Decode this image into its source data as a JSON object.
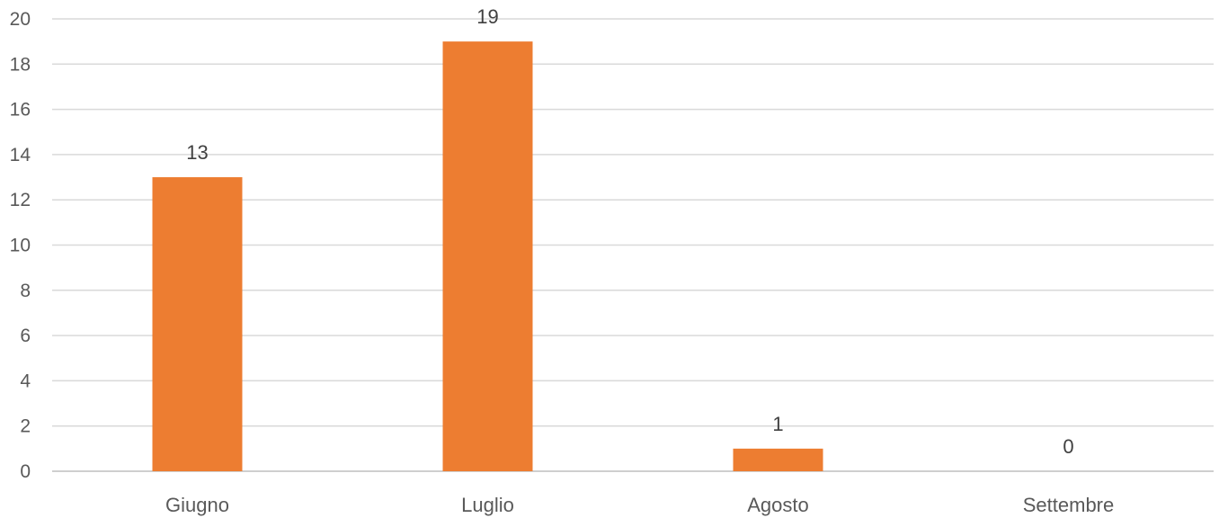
{
  "chart_data": {
    "type": "bar",
    "title": "",
    "xlabel": "",
    "ylabel": "",
    "categories": [
      "Giugno",
      "Luglio",
      "Agosto",
      "Settembre"
    ],
    "values": [
      13,
      19,
      1,
      0
    ],
    "ylim": [
      0,
      20
    ],
    "yticks": [
      0,
      2,
      4,
      6,
      8,
      10,
      12,
      14,
      16,
      18,
      20
    ],
    "grid": true,
    "legend": "none",
    "data_labels": true,
    "bar_color": "#ED7D31"
  }
}
